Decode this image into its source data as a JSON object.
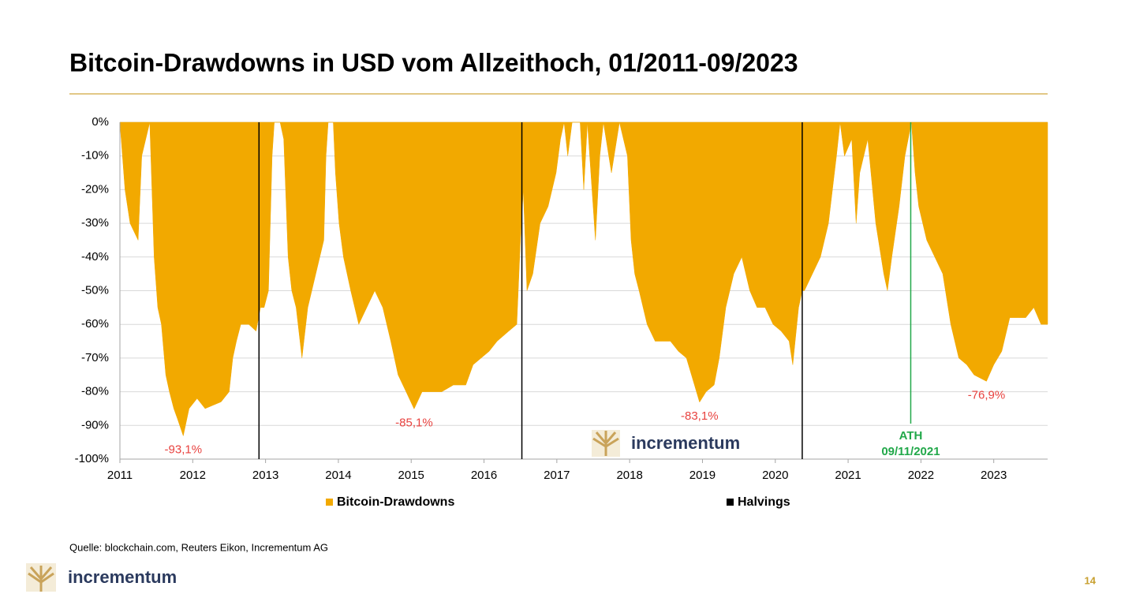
{
  "slide": {
    "source": "Quelle: blockchain.com, Reuters Eikon, Incrementum AG",
    "logo": "incrementum",
    "page": 14
  },
  "chart_data": {
    "type": "area",
    "title": "Bitcoin-Drawdowns in USD vom Allzeithoch, 01/2011-09/2023",
    "xlim": [
      2011,
      2023.74
    ],
    "xticks": [
      2011,
      2012,
      2013,
      2014,
      2015,
      2016,
      2017,
      2018,
      2019,
      2020,
      2021,
      2022,
      2023
    ],
    "ylim": [
      -100,
      0
    ],
    "yticks": [
      {
        "value": 0,
        "label": "0%"
      },
      {
        "value": -10,
        "label": "-10%"
      },
      {
        "value": -20,
        "label": "-20%"
      },
      {
        "value": -30,
        "label": "-30%"
      },
      {
        "value": -40,
        "label": "-40%"
      },
      {
        "value": -50,
        "label": "-50%"
      },
      {
        "value": -60,
        "label": "-60%"
      },
      {
        "value": -70,
        "label": "-70%"
      },
      {
        "value": -80,
        "label": "-80%"
      },
      {
        "value": -90,
        "label": "-90%"
      },
      {
        "value": -100,
        "label": "-100%"
      }
    ],
    "grid": true,
    "series": [
      {
        "name": "Bitcoin-Drawdowns",
        "color": "#f2a900",
        "x": [
          2011.0,
          2011.07,
          2011.14,
          2011.25,
          2011.3,
          2011.41,
          2011.47,
          2011.52,
          2011.57,
          2011.63,
          2011.68,
          2011.74,
          2011.79,
          2011.87,
          2011.95,
          2012.06,
          2012.17,
          2012.28,
          2012.39,
          2012.5,
          2012.55,
          2012.6,
          2012.66,
          2012.77,
          2012.87,
          2012.93,
          2012.98,
          2013.04,
          2013.09,
          2013.12,
          2013.2,
          2013.25,
          2013.31,
          2013.36,
          2013.42,
          2013.5,
          2013.58,
          2013.69,
          2013.8,
          2013.83,
          2013.86,
          2013.93,
          2013.96,
          2014.01,
          2014.07,
          2014.17,
          2014.28,
          2014.39,
          2014.5,
          2014.61,
          2014.72,
          2014.82,
          2014.93,
          2015.04,
          2015.15,
          2015.31,
          2015.42,
          2015.58,
          2015.75,
          2015.85,
          2015.96,
          2016.07,
          2016.18,
          2016.34,
          2016.45,
          2016.5,
          2016.54,
          2016.59,
          2016.67,
          2016.77,
          2016.88,
          2016.99,
          2017.05,
          2017.1,
          2017.15,
          2017.21,
          2017.32,
          2017.37,
          2017.42,
          2017.53,
          2017.59,
          2017.64,
          2017.75,
          2017.86,
          2017.97,
          2018.02,
          2018.07,
          2018.13,
          2018.24,
          2018.35,
          2018.45,
          2018.56,
          2018.67,
          2018.78,
          2018.89,
          2018.96,
          2019.05,
          2019.16,
          2019.23,
          2019.32,
          2019.43,
          2019.54,
          2019.65,
          2019.75,
          2019.86,
          2019.97,
          2020.08,
          2020.19,
          2020.24,
          2020.32,
          2020.37,
          2020.4,
          2020.51,
          2020.62,
          2020.73,
          2020.84,
          2020.89,
          2020.95,
          2021.05,
          2021.11,
          2021.16,
          2021.27,
          2021.38,
          2021.49,
          2021.54,
          2021.6,
          2021.7,
          2021.78,
          2021.87,
          2021.92,
          2021.97,
          2022.08,
          2022.19,
          2022.3,
          2022.41,
          2022.52,
          2022.63,
          2022.73,
          2022.9,
          2023.0,
          2023.11,
          2023.22,
          2023.33,
          2023.44,
          2023.55,
          2023.65,
          2023.74
        ],
        "values": [
          0,
          -20,
          -30,
          -35,
          -10,
          0,
          -40,
          -55,
          -60,
          -75,
          -80,
          -85,
          -88,
          -93.1,
          -85,
          -82,
          -85,
          -84,
          -83,
          -80,
          -70,
          -65,
          -60,
          -60,
          -62,
          -55,
          -55,
          -50,
          -10,
          0,
          0,
          -5,
          -40,
          -50,
          -55,
          -70,
          -55,
          -45,
          -35,
          -10,
          0,
          0,
          -15,
          -30,
          -40,
          -50,
          -60,
          -55,
          -50,
          -55,
          -65,
          -75,
          -80,
          -85.1,
          -80,
          -80,
          -80,
          -78,
          -78,
          -72,
          -70,
          -68,
          -65,
          -62,
          -60,
          -35,
          -20,
          -50,
          -45,
          -30,
          -25,
          -15,
          -5,
          0,
          -10,
          0,
          0,
          -20,
          0,
          -35,
          -10,
          0,
          -15,
          0,
          -10,
          -35,
          -45,
          -50,
          -60,
          -65,
          -65,
          -65,
          -68,
          -70,
          -78,
          -83.1,
          -80,
          -78,
          -70,
          -55,
          -45,
          -40,
          -50,
          -55,
          -55,
          -60,
          -62,
          -65,
          -72,
          -55,
          -50,
          -50,
          -45,
          -40,
          -30,
          -10,
          0,
          -10,
          -5,
          -30,
          -15,
          -5,
          -30,
          -45,
          -50,
          -40,
          -25,
          -10,
          0,
          -15,
          -25,
          -35,
          -40,
          -45,
          -60,
          -70,
          -72,
          -75,
          -76.9,
          -72,
          -68,
          -58,
          -58,
          -58,
          -55,
          -60,
          -60
        ]
      }
    ],
    "halvings": {
      "name": "Halvings",
      "color": "#000000",
      "x": [
        2012.91,
        2016.52,
        2020.37
      ]
    },
    "ath": {
      "label": "ATH",
      "date": "09/11/2021",
      "x": 2021.86,
      "color": "#22a84a"
    },
    "annotations": [
      {
        "text": "-93,1%",
        "x": 2011.87,
        "value": -93.1
      },
      {
        "text": "-85,1%",
        "x": 2015.04,
        "value": -85.1
      },
      {
        "text": "-83,1%",
        "x": 2018.96,
        "value": -83.1
      },
      {
        "text": "-76,9%",
        "x": 2022.9,
        "value": -76.9
      }
    ],
    "annotation_color": "#e8423f"
  }
}
